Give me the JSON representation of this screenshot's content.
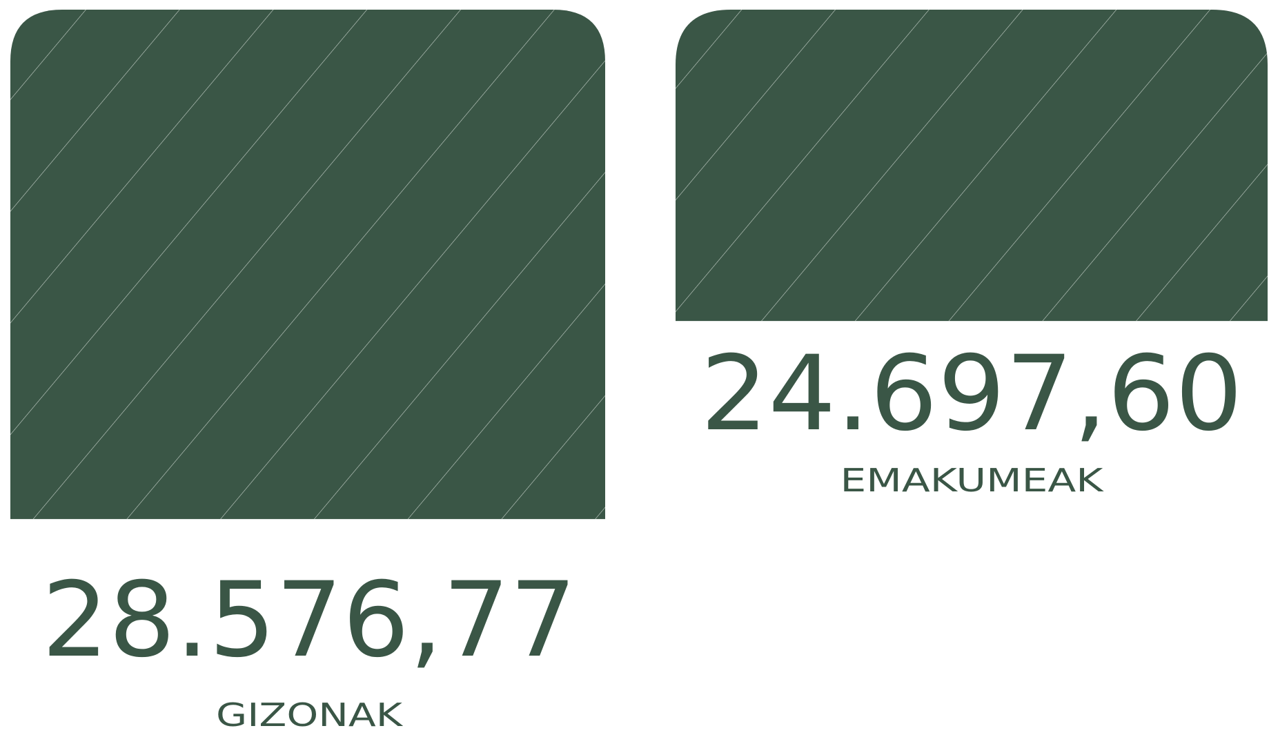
{
  "chart_data": {
    "type": "bar",
    "categories": [
      "GIZONAK",
      "EMAKUMEAK"
    ],
    "values": [
      28576.77,
      24697.6
    ],
    "value_labels": [
      "28.576,77",
      "24.697,60"
    ],
    "color": "#3a5646",
    "ylim": [
      18600,
      28900
    ]
  }
}
